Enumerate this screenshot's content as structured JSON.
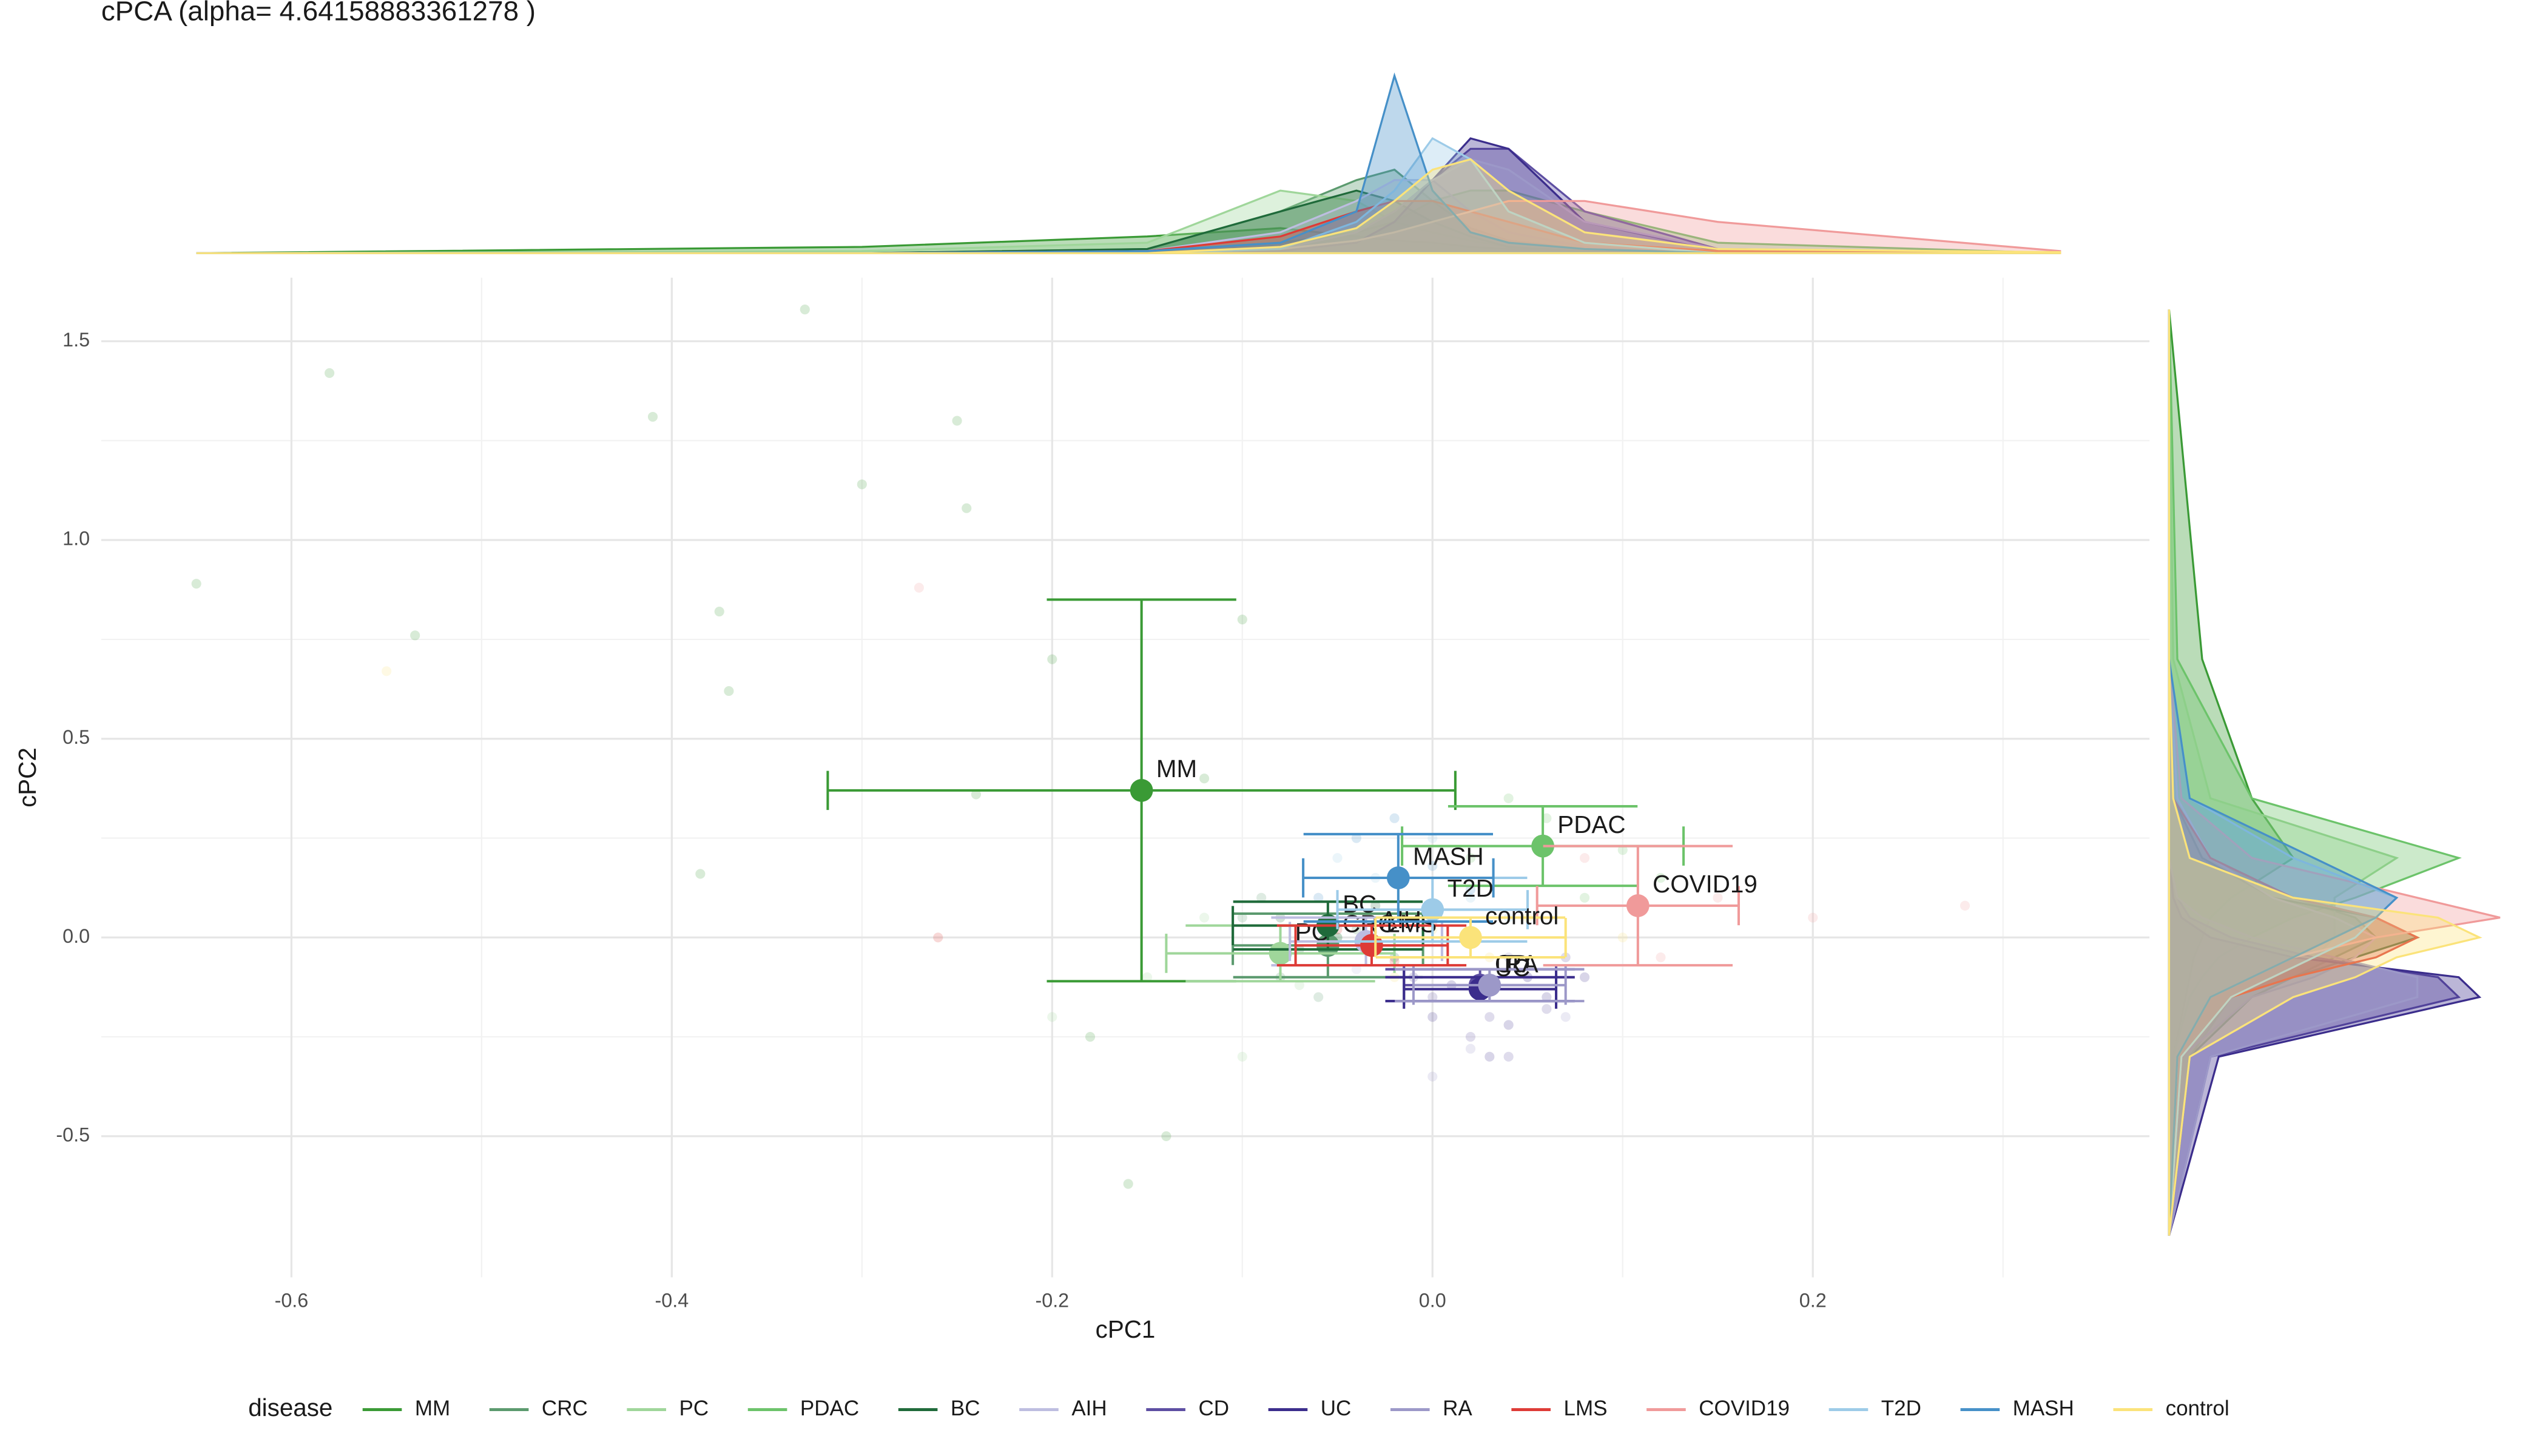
{
  "chart_data": {
    "type": "scatter",
    "title": "cPCA (alpha= 4.64158883361278 )",
    "x_label": "cPC1",
    "y_label": "cPC2",
    "legend_title": "disease",
    "legend_position": "bottom",
    "grid": true,
    "xlim": [
      -0.7,
      0.377
    ],
    "ylim": [
      -0.855,
      1.66
    ],
    "xticks": [
      -0.6,
      -0.4,
      -0.2,
      {
        "value": 0,
        "label": "0.0"
      },
      0.2
    ],
    "yticks": [
      -0.5,
      {
        "value": 0,
        "label": "0.0"
      },
      0.5,
      {
        "value": 1,
        "label": "1.0"
      },
      1.5
    ],
    "x_minor_ticks": [
      -0.5,
      -0.3,
      -0.1,
      0.1,
      0.3
    ],
    "y_minor_ticks": [
      -0.25,
      0.25,
      0.75,
      1.25
    ],
    "density_lim": [
      0,
      9
    ],
    "density_grid_x": [
      -0.65,
      -0.3,
      -0.15,
      -0.08,
      -0.04,
      -0.02,
      0,
      0.02,
      0.04,
      0.08,
      0.15,
      0.33
    ],
    "density_grid_y": [
      -0.75,
      -0.3,
      -0.15,
      -0.1,
      -0.05,
      0,
      0.05,
      0.1,
      0.2,
      0.35,
      0.7,
      1.58
    ],
    "series": [
      {
        "name": "MM",
        "color": "#3a9a35",
        "x": -0.153,
        "y": 0.37,
        "xerr": 0.165,
        "yerr": 0.48,
        "points_x": [
          -0.65,
          -0.58,
          -0.41,
          -0.33,
          -0.3,
          -0.25,
          -0.245,
          -0.375,
          -0.37,
          -0.535,
          -0.24,
          -0.385,
          -0.2,
          -0.12,
          -0.14,
          -0.16,
          -0.1,
          -0.18
        ],
        "points_y": [
          0.89,
          1.42,
          1.31,
          1.58,
          1.14,
          1.3,
          1.08,
          0.82,
          0.62,
          0.76,
          0.36,
          0.16,
          0.7,
          0.4,
          -0.5,
          -0.62,
          0.8,
          -0.25
        ],
        "density_x": [
          0,
          0.3,
          0.8,
          1.2,
          0.8,
          0.6,
          0.5,
          0.3,
          0.2,
          0.1,
          0.05,
          0
        ],
        "density_y": [
          0,
          0.1,
          0.4,
          0.5,
          0.6,
          0.8,
          1.0,
          1.5,
          3.0,
          2.0,
          0.8,
          0
        ]
      },
      {
        "name": "CRC",
        "color": "#5b9a6e",
        "x": -0.055,
        "y": -0.02,
        "xerr": 0.05,
        "yerr": 0.08,
        "points_x": [
          -0.1,
          -0.08,
          -0.04,
          -0.02,
          -0.06,
          -0.09
        ],
        "points_y": [
          0.05,
          -0.1,
          0.02,
          -0.05,
          -0.15,
          0.1
        ],
        "density_x": [
          0,
          0,
          0.2,
          2.0,
          3.5,
          4.0,
          2.5,
          1.2,
          0.6,
          0.2,
          0,
          0
        ],
        "density_y": [
          0,
          0.5,
          2.0,
          3.0,
          4.0,
          5.0,
          4.5,
          3.0,
          1.0,
          0.2,
          0,
          0
        ]
      },
      {
        "name": "PC",
        "color": "#9fd69a",
        "x": -0.08,
        "y": -0.04,
        "xerr": 0.06,
        "yerr": 0.07,
        "points_x": [
          -0.15,
          -0.12,
          -0.07,
          -0.05,
          -0.2,
          -0.1
        ],
        "points_y": [
          -0.1,
          0.05,
          -0.12,
          0.0,
          -0.2,
          -0.3
        ],
        "density_x": [
          0,
          0.1,
          0.5,
          3.0,
          2.5,
          1.5,
          1.0,
          0.6,
          0.3,
          0.1,
          0,
          0
        ],
        "density_y": [
          0,
          0.5,
          1.5,
          2.5,
          3.5,
          4.0,
          4.0,
          4.0,
          5.5,
          1.0,
          0.1,
          0
        ]
      },
      {
        "name": "PDAC",
        "color": "#6cc36a",
        "x": 0.058,
        "y": 0.23,
        "xerr": 0.074,
        "yerr": 0.1,
        "points_x": [
          0.02,
          0.06,
          0.1,
          0.12,
          0.04,
          0.08
        ],
        "points_y": [
          0.2,
          0.3,
          0.22,
          0.15,
          0.35,
          0.1
        ],
        "density_x": [
          0,
          0,
          0.1,
          0.5,
          1.0,
          1.5,
          2.5,
          3.0,
          3.0,
          2.0,
          0.5,
          0
        ],
        "density_y": [
          0,
          0.1,
          0.5,
          0.8,
          1.2,
          2.0,
          3.0,
          4.5,
          7.0,
          2.0,
          0.2,
          0
        ]
      },
      {
        "name": "BC",
        "color": "#1f6a3a",
        "x": -0.055,
        "y": 0.03,
        "xerr": 0.05,
        "yerr": 0.06,
        "points_x": [
          -0.08,
          -0.05,
          -0.03,
          -0.07
        ],
        "points_y": [
          0.05,
          0.0,
          0.08,
          -0.03
        ],
        "density_x": [
          0,
          0,
          0.2,
          2.0,
          3.0,
          2.5,
          1.5,
          0.8,
          0.3,
          0.1,
          0,
          0
        ],
        "density_y": [
          0,
          0.3,
          1.5,
          3.0,
          4.5,
          6.0,
          5.0,
          2.5,
          0.8,
          0.1,
          0,
          0
        ]
      },
      {
        "name": "AIH",
        "color": "#bdbde0",
        "x": -0.035,
        "y": -0.01,
        "xerr": 0.04,
        "yerr": 0.06,
        "points_x": [
          -0.06,
          -0.02,
          0.0,
          -0.04
        ],
        "points_y": [
          0.02,
          -0.05,
          0.05,
          -0.08
        ],
        "density_x": [
          0,
          0,
          0.1,
          1.0,
          2.5,
          3.5,
          3.5,
          2.0,
          1.0,
          0.3,
          0,
          0
        ],
        "density_y": [
          0,
          0.3,
          2.0,
          3.5,
          4.5,
          5.0,
          4.0,
          2.5,
          1.0,
          0.2,
          0,
          0
        ]
      },
      {
        "name": "CD",
        "color": "#5d4ea2",
        "x": 0.025,
        "y": -0.12,
        "xerr": 0.04,
        "yerr": 0.04,
        "points_x": [
          0.0,
          0.03,
          0.05,
          0.07,
          0.02,
          0.06,
          0.04,
          -0.01
        ],
        "points_y": [
          -0.15,
          -0.2,
          -0.1,
          -0.05,
          -0.25,
          -0.18,
          -0.3,
          -0.1
        ],
        "density_x": [
          0,
          0,
          0,
          0.2,
          1.0,
          2.0,
          3.5,
          5.0,
          5.0,
          2.0,
          0.2,
          0
        ],
        "density_y": [
          0,
          1.0,
          7.0,
          6.5,
          3.5,
          1.5,
          0.5,
          0.2,
          0,
          0,
          0,
          0
        ]
      },
      {
        "name": "UC",
        "color": "#3b2d8c",
        "x": 0.025,
        "y": -0.13,
        "xerr": 0.04,
        "yerr": 0.03,
        "points_x": [
          0.01,
          0.04,
          0.06,
          0.03,
          0.0,
          0.08
        ],
        "points_y": [
          -0.12,
          -0.22,
          -0.15,
          -0.3,
          -0.2,
          -0.1
        ],
        "density_x": [
          0,
          0,
          0,
          0.1,
          0.5,
          1.5,
          3.5,
          5.5,
          5.0,
          1.5,
          0.1,
          0
        ],
        "density_y": [
          0,
          1.2,
          7.5,
          7.0,
          3.0,
          1.0,
          0.3,
          0.1,
          0,
          0,
          0,
          0
        ]
      },
      {
        "name": "RA",
        "color": "#9c98c8",
        "x": 0.03,
        "y": -0.12,
        "xerr": 0.04,
        "yerr": 0.04,
        "points_x": [
          0.02,
          0.05,
          0.0,
          0.07,
          0.04
        ],
        "points_y": [
          -0.28,
          -0.1,
          -0.35,
          -0.2,
          -0.05
        ],
        "density_x": [
          0,
          0,
          0,
          0.2,
          1.0,
          2.0,
          3.5,
          4.5,
          4.0,
          1.5,
          0.2,
          0
        ],
        "density_y": [
          0,
          1.0,
          6.0,
          6.0,
          4.0,
          2.0,
          0.8,
          0.2,
          0,
          0,
          0,
          0
        ]
      },
      {
        "name": "LMS",
        "color": "#de3b36",
        "x": -0.032,
        "y": -0.02,
        "xerr": 0.04,
        "yerr": 0.05,
        "points_x": [
          -0.26,
          -0.05,
          -0.02,
          0.0
        ],
        "points_y": [
          0.0,
          0.02,
          -0.06,
          0.04
        ],
        "density_x": [
          0,
          0,
          0.1,
          0.8,
          2.0,
          2.5,
          2.5,
          2.0,
          1.5,
          0.5,
          0.1,
          0
        ],
        "density_y": [
          0,
          0.3,
          1.5,
          3.0,
          5.0,
          6.0,
          5.0,
          3.0,
          1.0,
          0.1,
          0,
          0
        ]
      },
      {
        "name": "COVID19",
        "color": "#f09a9a",
        "x": 0.108,
        "y": 0.08,
        "xerr": 0.053,
        "yerr": 0.15,
        "points_x": [
          0.15,
          0.2,
          0.28,
          0.08,
          0.12,
          -0.27
        ],
        "points_y": [
          0.1,
          0.05,
          0.08,
          0.2,
          -0.05,
          0.88
        ],
        "density_x": [
          0,
          0,
          0,
          0.2,
          0.6,
          1.0,
          1.5,
          2.0,
          2.5,
          2.5,
          1.5,
          0.1
        ],
        "density_y": [
          0,
          0.2,
          1.0,
          2.0,
          3.0,
          5.0,
          8.0,
          6.0,
          2.0,
          0.3,
          0,
          0
        ]
      },
      {
        "name": "T2D",
        "color": "#9dcbe8",
        "x": 0.0,
        "y": 0.07,
        "xerr": 0.05,
        "yerr": 0.08,
        "points_x": [
          -0.03,
          0.02,
          0.0,
          0.04,
          -0.05
        ],
        "points_y": [
          0.15,
          0.1,
          0.25,
          0.05,
          0.2
        ],
        "density_x": [
          0,
          0,
          0,
          0.2,
          1.5,
          3.0,
          5.5,
          4.5,
          2.0,
          0.5,
          0,
          0
        ],
        "density_y": [
          0,
          0.3,
          1.5,
          2.5,
          3.5,
          4.5,
          5.0,
          5.5,
          3.0,
          0.5,
          0,
          0
        ]
      },
      {
        "name": "MASH",
        "color": "#4690c8",
        "x": -0.018,
        "y": 0.15,
        "xerr": 0.05,
        "yerr": 0.11,
        "points_x": [
          -0.04,
          0.0,
          -0.02,
          0.02,
          -0.06
        ],
        "points_y": [
          0.25,
          0.18,
          0.3,
          0.12,
          0.1
        ],
        "density_x": [
          0,
          0,
          0.1,
          0.5,
          2.0,
          8.5,
          3.0,
          1.0,
          0.5,
          0.2,
          0,
          0
        ],
        "density_y": [
          0,
          0.2,
          1.0,
          2.0,
          3.0,
          4.0,
          5.0,
          5.5,
          3.5,
          0.5,
          0,
          0
        ]
      },
      {
        "name": "control",
        "color": "#fbe37a",
        "x": 0.02,
        "y": 0.0,
        "xerr": 0.05,
        "yerr": 0.05,
        "points_x": [
          -0.55,
          0.0,
          0.03,
          0.05,
          -0.02,
          0.1
        ],
        "points_y": [
          0.67,
          0.02,
          -0.05,
          0.05,
          -0.1,
          0.0
        ],
        "density_x": [
          0,
          0,
          0,
          0.3,
          1.2,
          2.5,
          4.0,
          4.5,
          3.0,
          1.0,
          0.2,
          0.05
        ],
        "density_y": [
          0,
          0.5,
          3.0,
          4.5,
          5.5,
          7.5,
          6.5,
          3.0,
          0.5,
          0.1,
          0,
          0
        ]
      }
    ]
  }
}
